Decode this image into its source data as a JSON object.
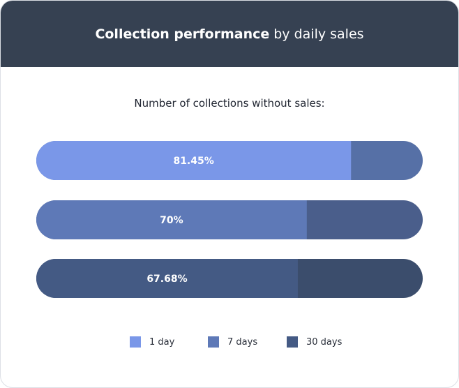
{
  "header": {
    "title_bold": "Collection performance",
    "title_rest": "by daily sales"
  },
  "colors": {
    "header_bg": "#364152"
  },
  "chart_data": {
    "type": "bar",
    "orientation": "horizontal",
    "stacked": true,
    "title": "Number of collections without sales:",
    "categories": [
      "1 day",
      "7 days",
      "30 days"
    ],
    "values": [
      81.45,
      70,
      67.68
    ],
    "value_labels": [
      "81.45%",
      "70%",
      "67.68%"
    ],
    "xlim": [
      0,
      100
    ],
    "grid": false,
    "legend_position": "bottom",
    "legend": [
      {
        "label": "1 day",
        "color": "#7a97e8"
      },
      {
        "label": "7 days",
        "color": "#5e79b7"
      },
      {
        "label": "30 days",
        "color": "#445a84"
      }
    ],
    "bar_colors": [
      "#7a97e8",
      "#5e79b7",
      "#445a84"
    ],
    "remainder_colors": [
      "#5670a6",
      "#4a5e8b",
      "#3b4d6c"
    ]
  }
}
